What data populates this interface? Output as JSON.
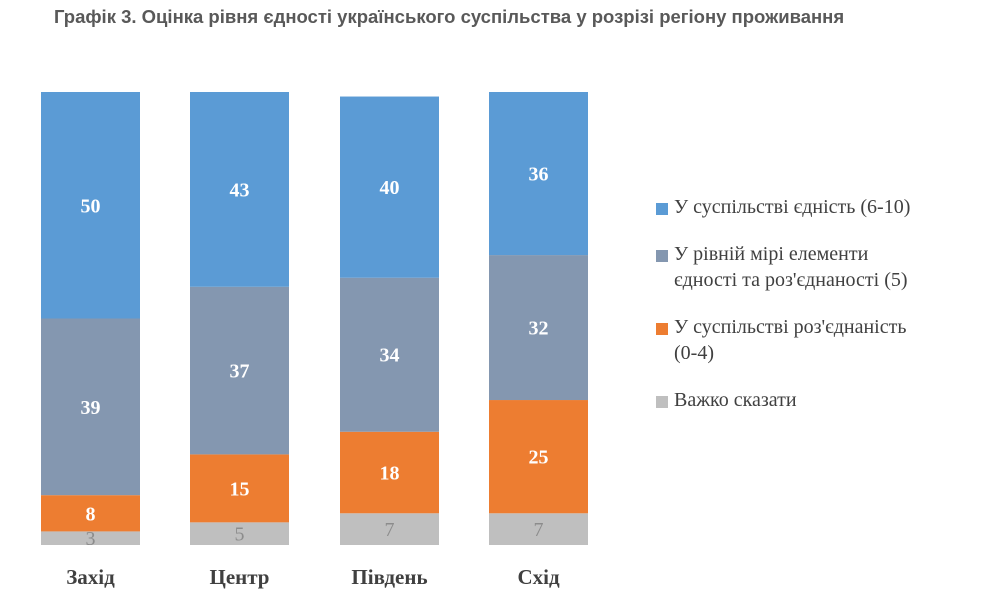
{
  "title": "Графік 3. Оцінка рівня єдності українського суспільства у розрізі регіону проживання",
  "legend": [
    {
      "line1": "У суспільстві єдність (6-10)",
      "line2": "",
      "color": "#5b9bd5"
    },
    {
      "line1": "У рівній мірі елементи",
      "line2": "єдності та роз'єднаності (5)",
      "color": "#8497b0"
    },
    {
      "line1": "У суспільстві роз'єднаність",
      "line2": "(0-4)",
      "color": "#ed7d31"
    },
    {
      "line1": "Важко сказати",
      "line2": "",
      "color": "#bfbfbf"
    }
  ],
  "chart_data": {
    "type": "bar",
    "stacked": true,
    "title": "Графік 3. Оцінка рівня єдності українського суспільства у розрізі регіону проживання",
    "categories": [
      "Захід",
      "Центр",
      "Південь",
      "Схід"
    ],
    "series": [
      {
        "name": "Важко сказати",
        "values": [
          3,
          5,
          7,
          7
        ],
        "color": "#bfbfbf"
      },
      {
        "name": "У суспільстві роз'єднаність (0-4)",
        "values": [
          8,
          15,
          18,
          25
        ],
        "color": "#ed7d31"
      },
      {
        "name": "У рівній мірі елементи єдності та роз'єднаності (5)",
        "values": [
          39,
          37,
          34,
          32
        ],
        "color": "#8497b0"
      },
      {
        "name": "У суспільстві єдність (6-10)",
        "values": [
          50,
          43,
          40,
          36
        ],
        "color": "#5b9bd5"
      }
    ],
    "ylim": [
      0,
      100
    ],
    "legend_position": "right"
  }
}
